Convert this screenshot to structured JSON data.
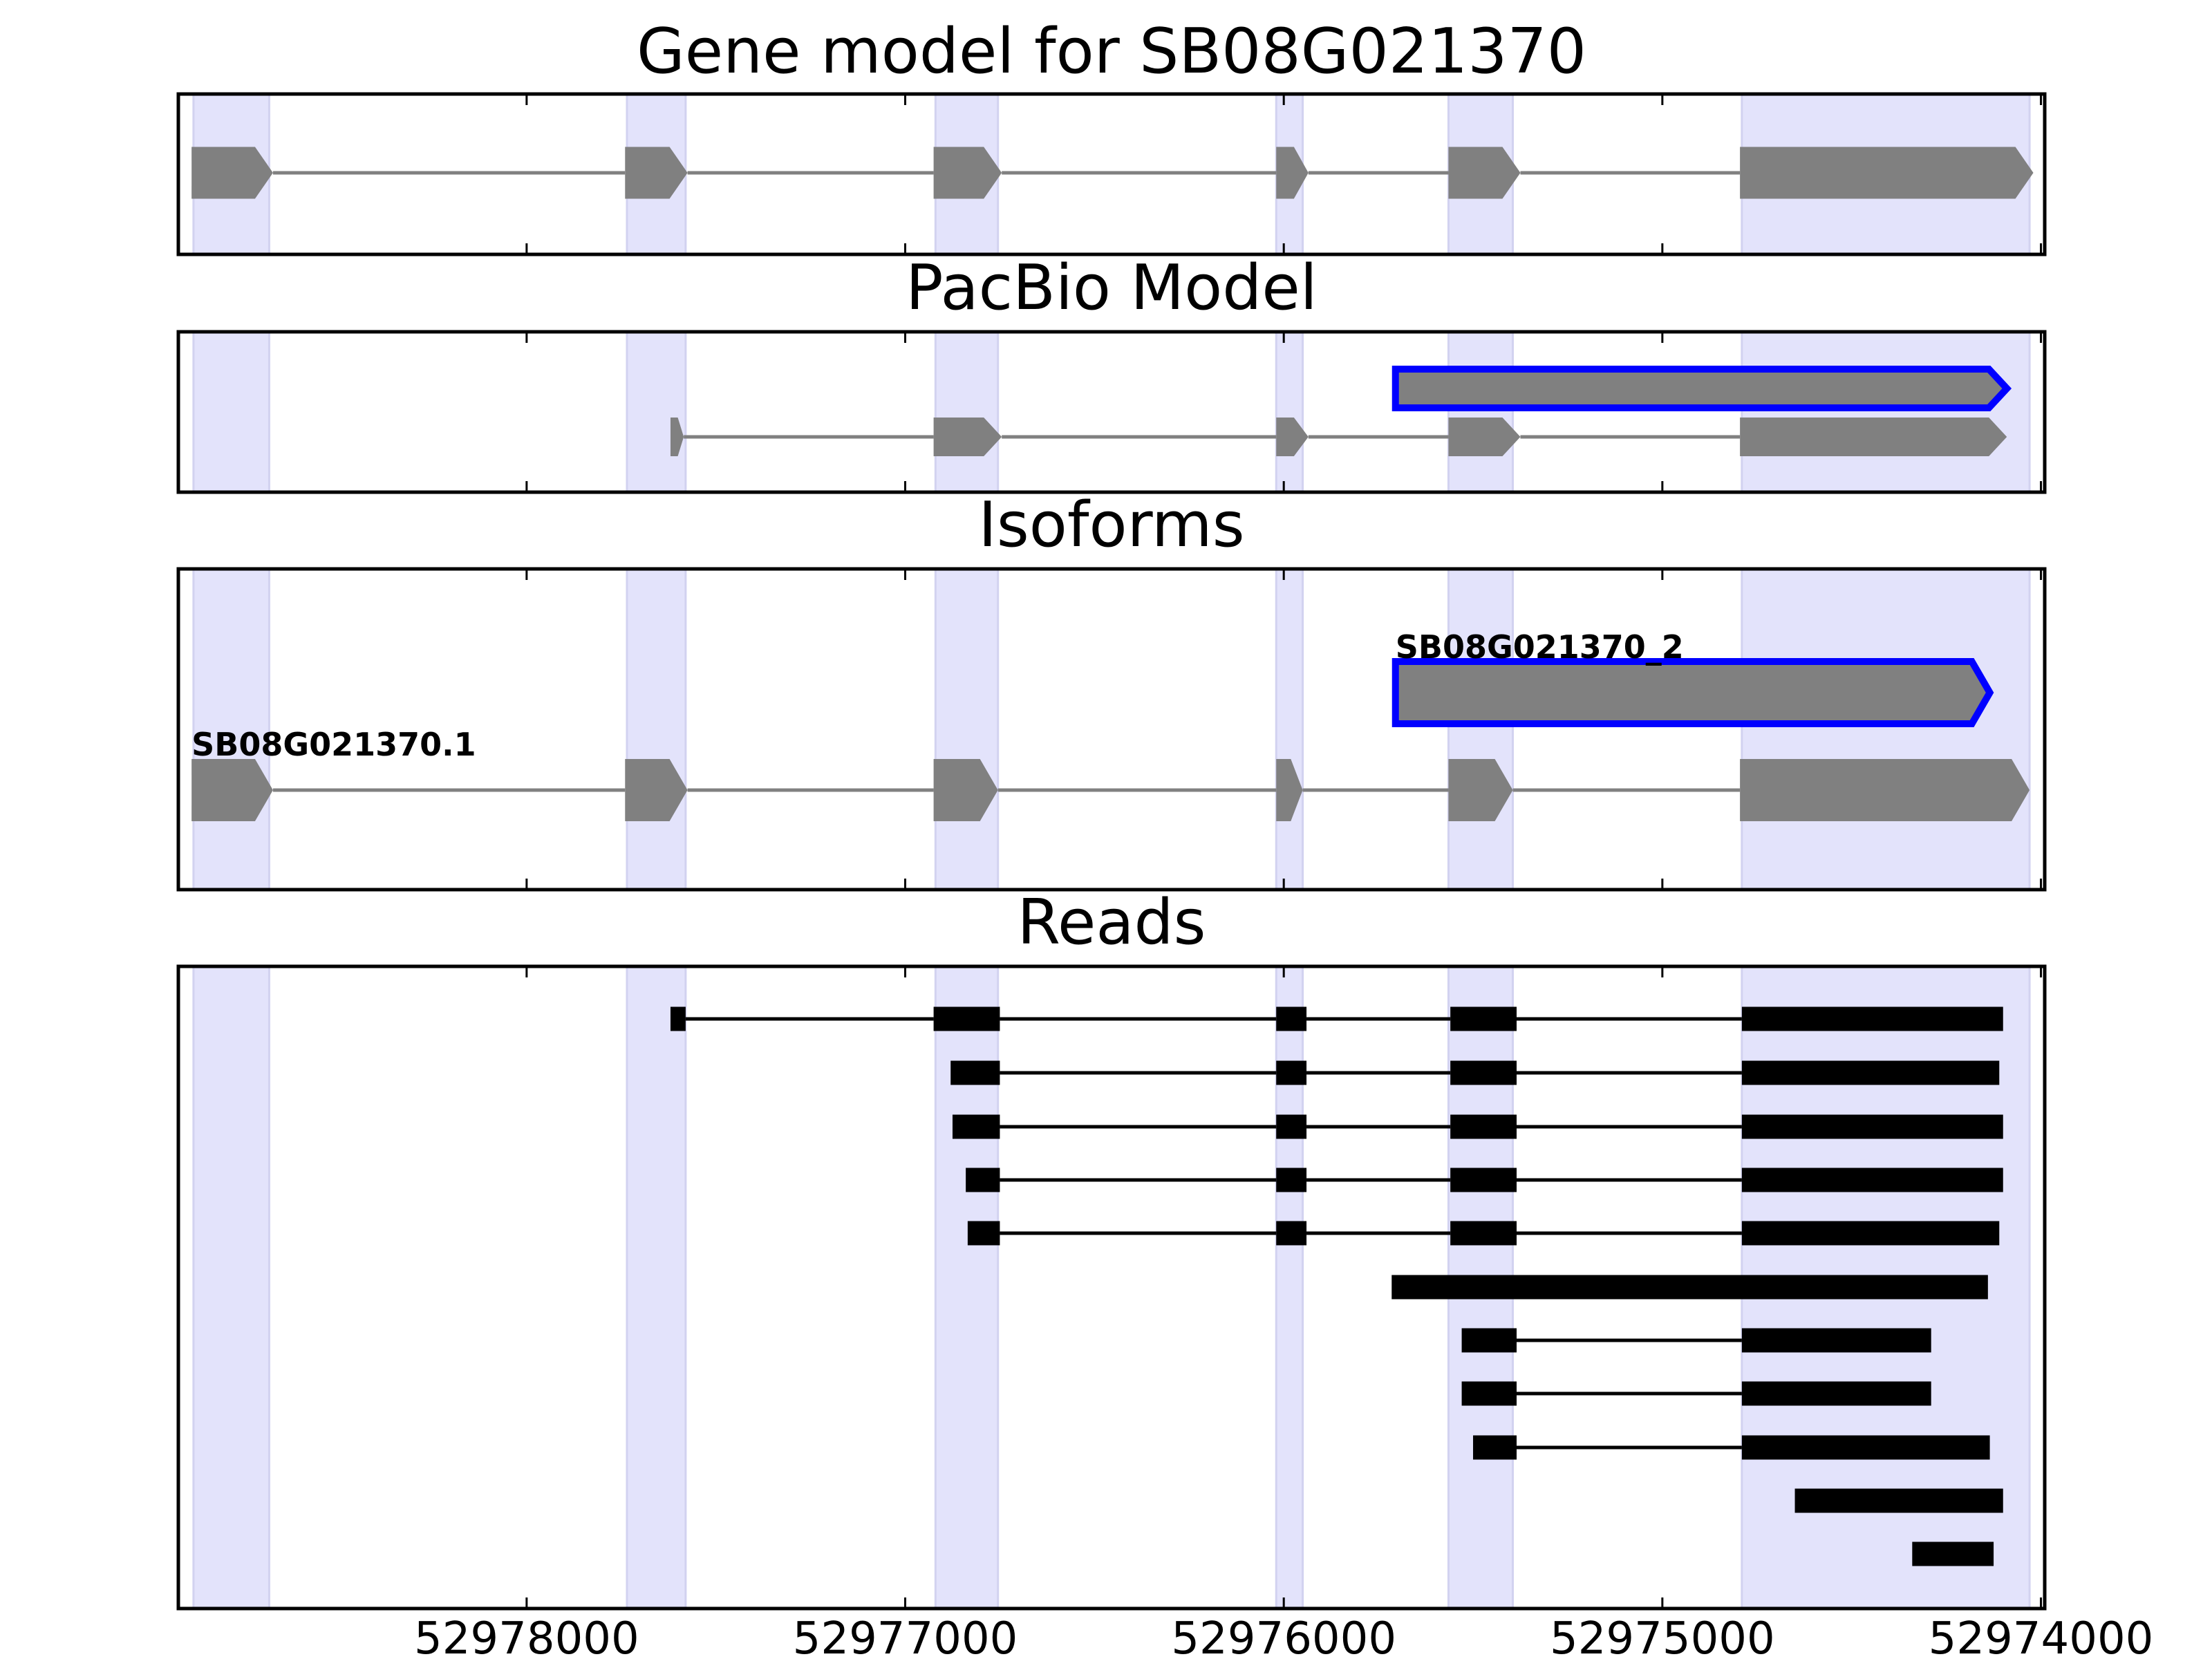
{
  "chart_data": {
    "type": "gene_track",
    "x_reversed": true,
    "xlim": [
      52978920,
      52973990
    ],
    "xticks": [
      52978000,
      52977000,
      52976000,
      52975000,
      52974000
    ],
    "xtick_labels": [
      "52978000",
      "52977000",
      "52976000",
      "52975000",
      "52974000"
    ],
    "shading_color": "#e3e3fb",
    "shaded_regions": [
      [
        52978880,
        52978680
      ],
      [
        52977735,
        52977580
      ],
      [
        52976920,
        52976755
      ],
      [
        52976020,
        52975950
      ],
      [
        52975565,
        52975395
      ],
      [
        52974790,
        52974030
      ]
    ],
    "panels": [
      {
        "id": "gene-model",
        "title": "Gene model for SB08G021370",
        "tracks": [
          {
            "label": "",
            "style": "gene",
            "highlight": false,
            "exons": [
              [
                52978885,
                52978670
              ],
              [
                52977740,
                52977575
              ],
              [
                52976925,
                52976745
              ],
              [
                52976020,
                52975935
              ],
              [
                52975565,
                52975375
              ],
              [
                52974795,
                52974020
              ]
            ]
          }
        ]
      },
      {
        "id": "pacbio-model",
        "title": "PacBio Model",
        "tracks": [
          {
            "label": "",
            "style": "gene",
            "highlight": true,
            "exons": [
              [
                52975705,
                52974090
              ]
            ]
          },
          {
            "label": "",
            "style": "gene",
            "highlight": false,
            "exons": [
              [
                52977620,
                52977585
              ],
              [
                52976925,
                52976745
              ],
              [
                52976020,
                52975935
              ],
              [
                52975565,
                52975375
              ],
              [
                52974795,
                52974090
              ]
            ]
          }
        ]
      },
      {
        "id": "isoforms",
        "title": "Isoforms",
        "tracks": [
          {
            "label": "SB08G021370_2",
            "style": "gene",
            "highlight": true,
            "exons": [
              [
                52975705,
                52974135
              ]
            ]
          },
          {
            "label": "SB08G021370.1",
            "style": "gene",
            "highlight": false,
            "exons": [
              [
                52978885,
                52978670
              ],
              [
                52977740,
                52977575
              ],
              [
                52976925,
                52976755
              ],
              [
                52976020,
                52975950
              ],
              [
                52975565,
                52975395
              ],
              [
                52974795,
                52974030
              ]
            ]
          }
        ]
      },
      {
        "id": "reads",
        "title": "Reads",
        "tracks": [
          {
            "style": "read",
            "exons": [
              [
                52977620,
                52977580
              ],
              [
                52976925,
                52976750
              ],
              [
                52976020,
                52975940
              ],
              [
                52975560,
                52975385
              ],
              [
                52974790,
                52974100
              ]
            ]
          },
          {
            "style": "read",
            "exons": [
              [
                52976880,
                52976750
              ],
              [
                52976020,
                52975940
              ],
              [
                52975560,
                52975385
              ],
              [
                52974790,
                52974110
              ]
            ]
          },
          {
            "style": "read",
            "exons": [
              [
                52976875,
                52976750
              ],
              [
                52976020,
                52975940
              ],
              [
                52975560,
                52975385
              ],
              [
                52974790,
                52974100
              ]
            ]
          },
          {
            "style": "read",
            "exons": [
              [
                52976840,
                52976750
              ],
              [
                52976020,
                52975940
              ],
              [
                52975560,
                52975385
              ],
              [
                52974790,
                52974100
              ]
            ]
          },
          {
            "style": "read",
            "exons": [
              [
                52976835,
                52976750
              ],
              [
                52976020,
                52975940
              ],
              [
                52975560,
                52975385
              ],
              [
                52974790,
                52974110
              ]
            ]
          },
          {
            "style": "read",
            "exons": [
              [
                52975715,
                52974140
              ]
            ]
          },
          {
            "style": "read",
            "exons": [
              [
                52975530,
                52975385
              ],
              [
                52974790,
                52974290
              ]
            ]
          },
          {
            "style": "read",
            "exons": [
              [
                52975530,
                52975385
              ],
              [
                52974790,
                52974290
              ]
            ]
          },
          {
            "style": "read",
            "exons": [
              [
                52975500,
                52975385
              ],
              [
                52974790,
                52974135
              ]
            ]
          },
          {
            "style": "read",
            "exons": [
              [
                52974650,
                52974100
              ]
            ]
          },
          {
            "style": "read",
            "exons": [
              [
                52974340,
                52974125
              ]
            ]
          }
        ]
      }
    ]
  }
}
